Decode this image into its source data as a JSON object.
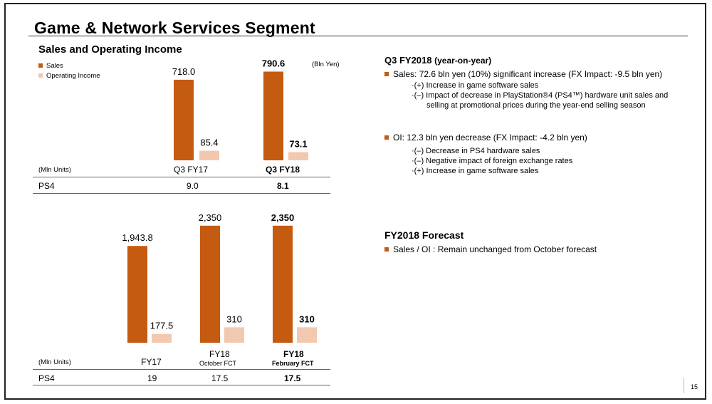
{
  "title": "Game & Network Services Segment",
  "chart_subtitle": "Sales and Operating Income",
  "colors": {
    "sales": "#c55a11",
    "oi": "#f2c9ae",
    "accent": "#c55a11"
  },
  "legend": {
    "sales": "Sales",
    "oi": "Operating Income"
  },
  "unit_note": "(Bln Yen)",
  "chart_data": [
    {
      "type": "bar",
      "categories": [
        "Q3 FY17",
        "Q3 FY18"
      ],
      "series": [
        {
          "name": "Sales",
          "values": [
            718.0,
            790.6
          ]
        },
        {
          "name": "Operating Income",
          "values": [
            85.4,
            73.1
          ]
        }
      ],
      "value_labels": {
        "sales": [
          "718.0",
          "790.6"
        ],
        "oi": [
          "85.4",
          "73.1"
        ]
      },
      "bold_category": [
        false,
        true
      ],
      "ylabel": "(Bln Yen)"
    },
    {
      "type": "bar",
      "categories": [
        "FY17",
        "FY18 October FCT",
        "FY18 February FCT"
      ],
      "series": [
        {
          "name": "Sales",
          "values": [
            1943.8,
            2350,
            2350
          ]
        },
        {
          "name": "Operating Income",
          "values": [
            177.5,
            310,
            310
          ]
        }
      ],
      "value_labels": {
        "sales": [
          "1,943.8",
          "2,350",
          "2,350"
        ],
        "oi": [
          "177.5",
          "310",
          "310"
        ]
      },
      "bold_category": [
        false,
        false,
        true
      ]
    }
  ],
  "table1": {
    "unit": "(Mln Units)",
    "col1": "Q3 FY17",
    "col2": "Q3 FY18",
    "row_label": "PS4",
    "v1": "9.0",
    "v2": "8.1"
  },
  "table2": {
    "unit": "(Mln Units)",
    "col1": "FY17",
    "col2_line1": "FY18",
    "col2_line2": "October FCT",
    "col3_line1": "FY18",
    "col3_line2": "February FCT",
    "row_label": "PS4",
    "v1": "19",
    "v2": "17.5",
    "v3": "17.5"
  },
  "q3": {
    "heading": "Q3 FY2018",
    "heading_suffix": "(year-on-year)",
    "sales_bullet": "Sales: 72.6 bln yen (10%) significant increase (FX Impact: -9.5 bln yen)",
    "sales_details": [
      "(+)  Increase in game software sales",
      "(–)  Impact of decrease in PlayStation®4 (PS4™) hardware unit sales and",
      "selling at promotional prices during the year-end selling season"
    ],
    "oi_bullet": "OI: 12.3 bln yen decrease (FX Impact: -4.2 bln yen)",
    "oi_details": [
      "(–)  Decrease in PS4 hardware sales",
      "(–)  Negative impact of foreign exchange rates",
      "(+)  Increase in game software sales"
    ]
  },
  "forecast": {
    "heading": "FY2018 Forecast",
    "bullet": "Sales / OI : Remain unchanged from October forecast"
  },
  "page_number": "15"
}
